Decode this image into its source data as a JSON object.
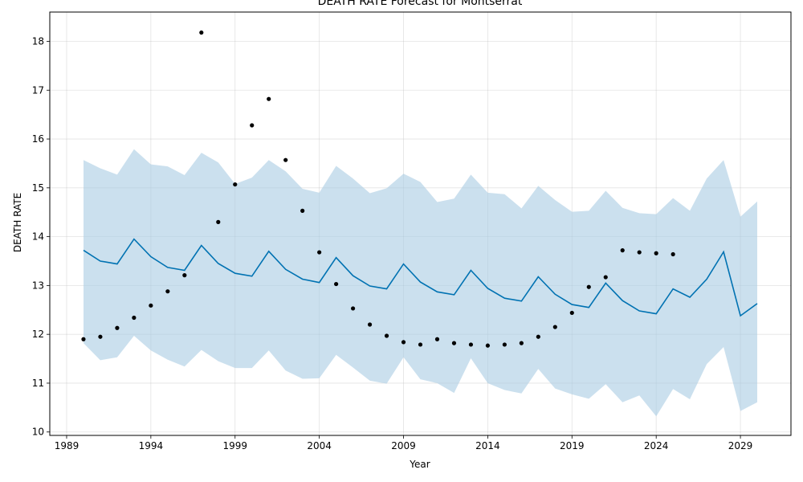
{
  "chart_data": {
    "type": "line",
    "title": "DEATH RATE Forecast for Montserrat",
    "xlabel": "Year",
    "ylabel": "DEATH RATE",
    "xlim": [
      1988.0,
      2032.0
    ],
    "ylim": [
      9.93,
      18.6
    ],
    "xticks": [
      1989,
      1994,
      1999,
      2004,
      2009,
      2014,
      2019,
      2024,
      2029
    ],
    "yticks": [
      10,
      11,
      12,
      13,
      14,
      15,
      16,
      17,
      18
    ],
    "grid": true,
    "colors": {
      "forecast": "#0072B2",
      "interval": "#A9CCE3",
      "observed": "#000000"
    },
    "series": [
      {
        "kind": "observed",
        "x": [
          1990,
          1991,
          1992,
          1993,
          1994,
          1995,
          1996,
          1997,
          1998,
          1999,
          2000,
          2001,
          2002,
          2003,
          2004,
          2005,
          2006,
          2007,
          2008,
          2009,
          2010,
          2011,
          2012,
          2013,
          2014,
          2015,
          2016,
          2017,
          2018,
          2019,
          2020,
          2021,
          2022,
          2023,
          2024,
          2025
        ],
        "y": [
          11.9,
          11.95,
          12.13,
          12.34,
          12.59,
          12.88,
          13.21,
          18.18,
          14.3,
          15.07,
          16.28,
          16.82,
          15.57,
          14.53,
          13.68,
          13.03,
          12.53,
          12.2,
          11.97,
          11.84,
          11.79,
          11.9,
          11.82,
          11.79,
          11.77,
          11.79,
          11.82,
          11.95,
          12.15,
          12.44,
          12.97,
          13.17,
          13.72,
          13.68,
          13.66,
          13.64
        ]
      },
      {
        "kind": "forecast",
        "x": [
          1990,
          1991,
          1992,
          1993,
          1994,
          1995,
          1996,
          1997,
          1998,
          1999,
          2000,
          2001,
          2002,
          2003,
          2004,
          2005,
          2006,
          2007,
          2008,
          2009,
          2010,
          2011,
          2012,
          2013,
          2014,
          2015,
          2016,
          2017,
          2018,
          2019,
          2020,
          2021,
          2022,
          2023,
          2024,
          2025,
          2026,
          2027,
          2028,
          2029,
          2030
        ],
        "y": [
          13.72,
          13.5,
          13.44,
          13.95,
          13.59,
          13.37,
          13.31,
          13.82,
          13.45,
          13.25,
          13.19,
          13.7,
          13.33,
          13.13,
          13.06,
          13.57,
          13.2,
          12.99,
          12.93,
          13.44,
          13.07,
          12.87,
          12.81,
          13.31,
          12.94,
          12.74,
          12.68,
          13.18,
          12.82,
          12.61,
          12.55,
          13.05,
          12.69,
          12.48,
          12.42,
          12.93,
          12.76,
          13.13,
          13.69,
          12.38,
          12.63
        ]
      },
      {
        "kind": "interval_upper",
        "x": [
          1990,
          1991,
          1992,
          1993,
          1994,
          1995,
          1996,
          1997,
          1998,
          1999,
          2000,
          2001,
          2002,
          2003,
          2004,
          2005,
          2006,
          2007,
          2008,
          2009,
          2010,
          2011,
          2012,
          2013,
          2014,
          2015,
          2016,
          2017,
          2018,
          2019,
          2020,
          2021,
          2022,
          2023,
          2024,
          2025,
          2026,
          2027,
          2028,
          2029,
          2030
        ],
        "y": [
          15.57,
          15.4,
          15.27,
          15.79,
          15.48,
          15.44,
          15.26,
          15.72,
          15.52,
          15.08,
          15.21,
          15.57,
          15.34,
          14.98,
          14.9,
          15.45,
          15.19,
          14.89,
          14.99,
          15.29,
          15.12,
          14.71,
          14.78,
          15.27,
          14.9,
          14.87,
          14.58,
          15.04,
          14.75,
          14.51,
          14.53,
          14.94,
          14.59,
          14.48,
          14.46,
          14.79,
          14.53,
          15.19,
          15.57,
          14.41,
          14.72
        ]
      },
      {
        "kind": "interval_lower",
        "x": [
          1990,
          1991,
          1992,
          1993,
          1994,
          1995,
          1996,
          1997,
          1998,
          1999,
          2000,
          2001,
          2002,
          2003,
          2004,
          2005,
          2006,
          2007,
          2008,
          2009,
          2010,
          2011,
          2012,
          2013,
          2014,
          2015,
          2016,
          2017,
          2018,
          2019,
          2020,
          2021,
          2022,
          2023,
          2024,
          2025,
          2026,
          2027,
          2028,
          2029,
          2030
        ],
        "y": [
          11.82,
          11.47,
          11.53,
          11.97,
          11.67,
          11.48,
          11.34,
          11.68,
          11.45,
          11.31,
          11.31,
          11.67,
          11.26,
          11.09,
          11.1,
          11.58,
          11.32,
          11.05,
          10.99,
          11.53,
          11.08,
          11.0,
          10.8,
          11.51,
          11.0,
          10.86,
          10.79,
          11.29,
          10.89,
          10.77,
          10.68,
          10.98,
          10.61,
          10.75,
          10.32,
          10.88,
          10.67,
          11.39,
          11.74,
          10.43,
          10.61
        ]
      }
    ]
  }
}
